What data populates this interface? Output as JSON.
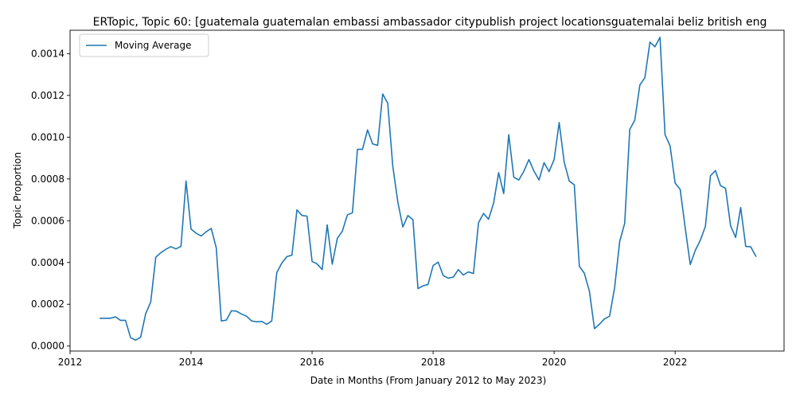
{
  "chart_data": {
    "type": "line",
    "title": "ERTopic, Topic 60: [guatemala guatemalan embassi ambassador citypublish project locationsguatemalai beliz british eng",
    "xlabel": "Date in Months (From January 2012 to May 2023)",
    "ylabel": "Topic Proportion",
    "xlim": [
      2012.0,
      2023.8
    ],
    "ylim": [
      -2.4e-05,
      0.001512
    ],
    "x_ticks": [
      2012,
      2014,
      2016,
      2018,
      2020,
      2022
    ],
    "x_tick_labels": [
      "2012",
      "2014",
      "2016",
      "2018",
      "2020",
      "2022"
    ],
    "y_ticks": [
      0,
      0.0002,
      0.0004,
      0.0006,
      0.0008,
      0.001,
      0.0012,
      0.0014
    ],
    "y_tick_labels": [
      "0.0000",
      "0.0002",
      "0.0004",
      "0.0006",
      "0.0008",
      "0.0010",
      "0.0012",
      "0.0014"
    ],
    "grid": false,
    "legend": {
      "position": "top-left",
      "entries": [
        "Moving Average"
      ]
    },
    "series": [
      {
        "name": "Moving Average",
        "color": "#1f77b4",
        "x_start": "2012-07",
        "values": [
          0.000133,
          0.000133,
          0.000133,
          0.00014,
          0.000123,
          0.000123,
          4e-05,
          2.8e-05,
          4.2e-05,
          0.000155,
          0.000211,
          0.000425,
          0.000447,
          0.000463,
          0.000476,
          0.000465,
          0.000477,
          0.00079,
          0.00056,
          0.00054,
          0.000527,
          0.000547,
          0.000563,
          0.00047,
          0.00012,
          0.000124,
          0.000169,
          0.000167,
          0.000153,
          0.000143,
          0.00012,
          0.000116,
          0.000118,
          0.000104,
          0.00012,
          0.000352,
          0.000397,
          0.000428,
          0.000435,
          0.000652,
          0.000625,
          0.000622,
          0.000405,
          0.000393,
          0.000366,
          0.00058,
          0.000392,
          0.000515,
          0.00055,
          0.000628,
          0.000638,
          0.000942,
          0.000942,
          0.001035,
          0.000968,
          0.000961,
          0.001207,
          0.001163,
          0.000862,
          0.00069,
          0.00057,
          0.000625,
          0.000605,
          0.000275,
          0.000288,
          0.000295,
          0.000385,
          0.000402,
          0.000338,
          0.000325,
          0.00033,
          0.000366,
          0.00034,
          0.000355,
          0.000347,
          0.00059,
          0.000635,
          0.000607,
          0.000685,
          0.00083,
          0.00073,
          0.001012,
          0.000808,
          0.000795,
          0.000837,
          0.000893,
          0.000838,
          0.000795,
          0.000878,
          0.000835,
          0.000893,
          0.00107,
          0.00088,
          0.00079,
          0.000772,
          0.000382,
          0.000348,
          0.000262,
          8.3e-05,
          0.000105,
          0.00013,
          0.000143,
          0.00028,
          0.0005,
          0.000588,
          0.001037,
          0.001082,
          0.00125,
          0.001285,
          0.001455,
          0.001433,
          0.001478,
          0.001012,
          0.000958,
          0.00078,
          0.00075,
          0.000565,
          0.00039,
          0.000458,
          0.000507,
          0.000573,
          0.000815,
          0.00084,
          0.000768,
          0.000755,
          0.000575,
          0.00052,
          0.000663,
          0.000477,
          0.000475,
          0.00043
        ]
      }
    ]
  }
}
